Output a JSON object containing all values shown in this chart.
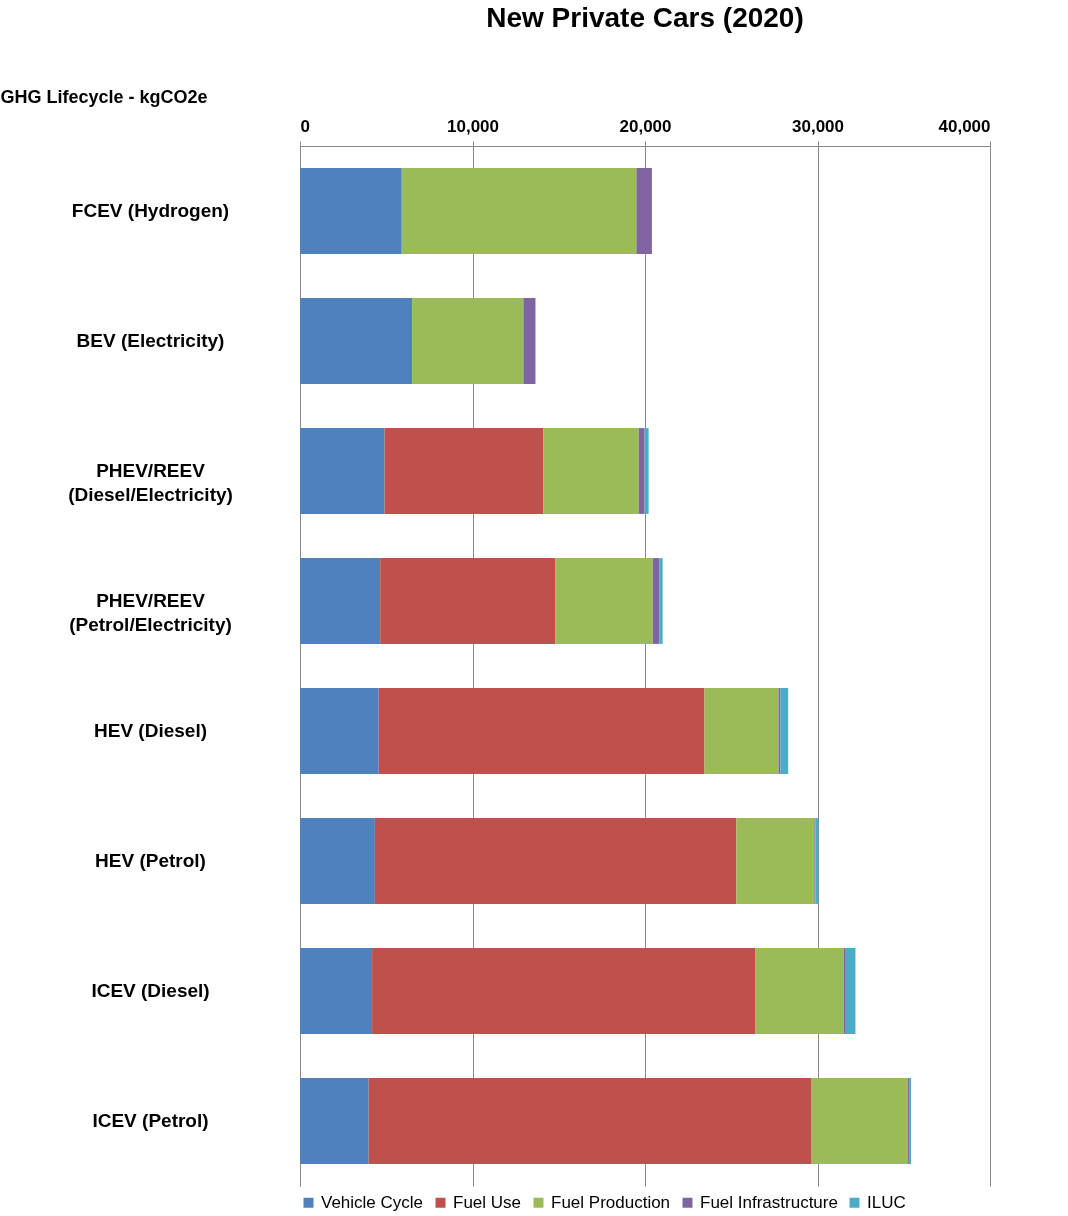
{
  "chart_data": {
    "type": "bar",
    "orientation": "horizontal",
    "stacked": true,
    "title": "New Private Cars (2020)",
    "xlabel": "GHG Lifecycle - kgCO2e",
    "categories": [
      "FCEV (Hydrogen)",
      "BEV (Electricity)",
      "PHEV/REEV (Diesel/Electricity)",
      "PHEV/REEV (Petrol/Electricity)",
      "HEV (Diesel)",
      "HEV (Petrol)",
      "ICEV (Diesel)",
      "ICEV (Petrol)"
    ],
    "series": [
      {
        "name": "Vehicle Cycle",
        "color": "#4f81bd",
        "values": [
          5900,
          6500,
          4900,
          4650,
          4560,
          4340,
          4180,
          3980
        ]
      },
      {
        "name": "Fuel Use",
        "color": "#c0504d",
        "values": [
          0,
          0,
          9200,
          10140,
          18890,
          20960,
          22200,
          25680
        ]
      },
      {
        "name": "Fuel Production",
        "color": "#9bbb59",
        "values": [
          13600,
          6450,
          5540,
          5660,
          4290,
          4520,
          5150,
          5590
        ]
      },
      {
        "name": "Fuel Infrastructure",
        "color": "#8064a2",
        "values": [
          900,
          700,
          340,
          380,
          100,
          60,
          110,
          60
        ]
      },
      {
        "name": "ILUC",
        "color": "#4bacc6",
        "values": [
          0,
          0,
          230,
          190,
          460,
          170,
          560,
          110
        ]
      }
    ],
    "xlim": [
      0,
      40000
    ],
    "xticks": [
      0,
      {
        "value": 10000,
        "label": "10,000"
      },
      {
        "value": 20000,
        "label": "20,000"
      },
      {
        "value": 30000,
        "label": "30,000"
      },
      {
        "value": 40000,
        "label": "40,000"
      }
    ],
    "grid": "x",
    "legend": "bottom"
  }
}
